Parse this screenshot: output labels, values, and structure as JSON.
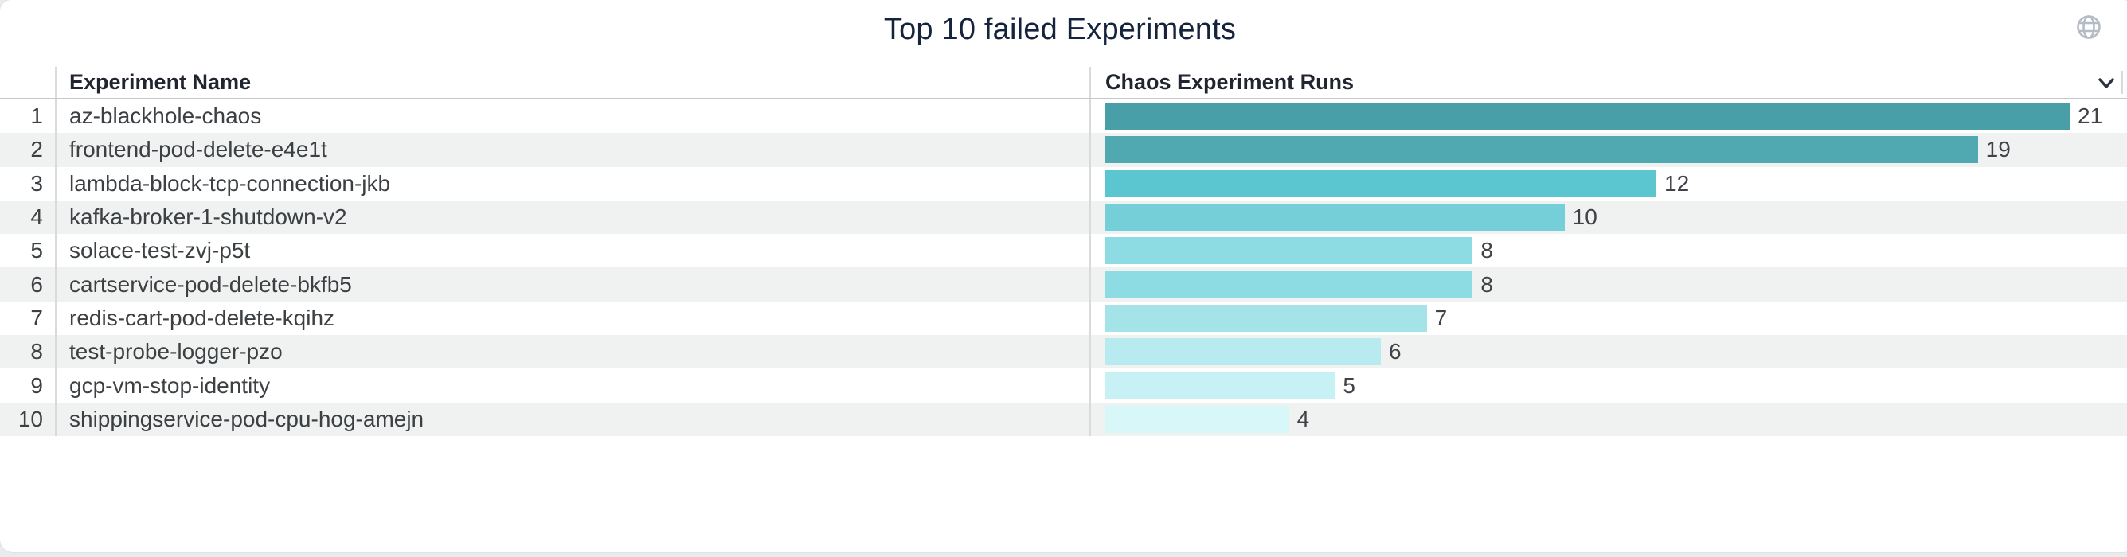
{
  "panel": {
    "title": "Top 10 failed Experiments"
  },
  "table": {
    "columns": [
      "Experiment Name",
      "Chaos Experiment Runs"
    ],
    "rows": [
      {
        "index": "1",
        "name": "az-blackhole-chaos",
        "runs": 21
      },
      {
        "index": "2",
        "name": "frontend-pod-delete-e4e1t",
        "runs": 19
      },
      {
        "index": "3",
        "name": "lambda-block-tcp-connection-jkb",
        "runs": 12
      },
      {
        "index": "4",
        "name": "kafka-broker-1-shutdown-v2",
        "runs": 10
      },
      {
        "index": "5",
        "name": "solace-test-zvj-p5t",
        "runs": 8
      },
      {
        "index": "6",
        "name": "cartservice-pod-delete-bkfb5",
        "runs": 8
      },
      {
        "index": "7",
        "name": "redis-cart-pod-delete-kqihz",
        "runs": 7
      },
      {
        "index": "8",
        "name": "test-probe-logger-pzo",
        "runs": 6
      },
      {
        "index": "9",
        "name": "gcp-vm-stop-identity",
        "runs": 5
      },
      {
        "index": "10",
        "name": "shippingservice-pod-cpu-hog-amejn",
        "runs": 4
      }
    ]
  },
  "chart_data": {
    "type": "bar",
    "orientation": "horizontal",
    "title": "Top 10 failed Experiments",
    "xlabel": "Chaos Experiment Runs",
    "ylabel": "Experiment Name",
    "categories": [
      "az-blackhole-chaos",
      "frontend-pod-delete-e4e1t",
      "lambda-block-tcp-connection-jkb",
      "kafka-broker-1-shutdown-v2",
      "solace-test-zvj-p5t",
      "cartservice-pod-delete-bkfb5",
      "redis-cart-pod-delete-kqihz",
      "test-probe-logger-pzo",
      "gcp-vm-stop-identity",
      "shippingservice-pod-cpu-hog-amejn"
    ],
    "values": [
      21,
      19,
      12,
      10,
      8,
      8,
      7,
      6,
      5,
      4
    ],
    "xlim": [
      0,
      21
    ],
    "data_labels": true,
    "legend": "none",
    "grid": false,
    "bar_colors": [
      "#489fa8",
      "#50a9b1",
      "#5bc5d0",
      "#74cfd9",
      "#8edce3",
      "#8edce3",
      "#a4e4e9",
      "#b8ebef",
      "#c7f1f4",
      "#d7f7f9"
    ]
  },
  "colors": {
    "title_text": "#16233c",
    "header_text": "#202530",
    "body_text": "#3c4043",
    "row_alt_background": "#f0f1f1",
    "divider": "#d8dadc",
    "header_border": "#c5c8cb",
    "page_background": "#e9ebee",
    "card_background": "#ffffff",
    "globe_icon": "#b6bcc5",
    "chevron_icon": "#2a3340"
  }
}
